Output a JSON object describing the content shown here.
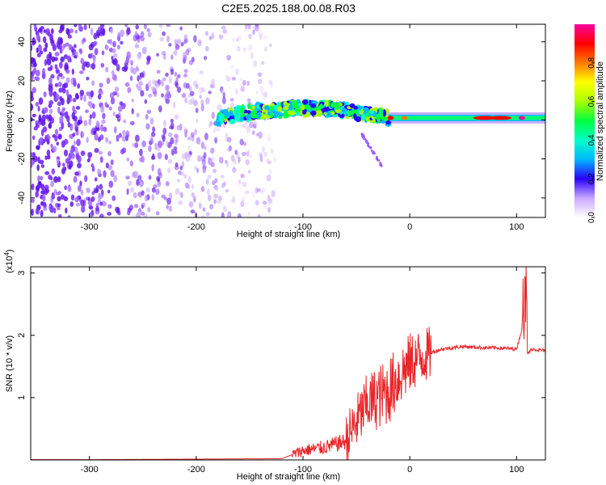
{
  "title": "C2E5.2025.188.00.08.R03",
  "chart_data": [
    {
      "type": "heatmap",
      "xlabel": "Height of straight line (km)",
      "ylabel": "Frequency (Hz)",
      "xlim": [
        -355,
        127
      ],
      "ylim": [
        -50,
        49
      ],
      "xticks": [
        -300,
        -200,
        -100,
        0,
        100
      ],
      "yticks": [
        -40,
        -20,
        0,
        20,
        40
      ],
      "colorbar": {
        "label": "Normalized spectral amplitude",
        "range": [
          0,
          1
        ],
        "ticks": [
          0.0,
          0.2,
          0.4,
          0.6,
          0.8
        ]
      },
      "regions": {
        "noise_x_range": [
          -355,
          -125
        ],
        "signal_x_range": [
          -180,
          127
        ],
        "signal_center_freq_hz": 1
      },
      "grid": false
    },
    {
      "type": "line",
      "xlabel": "Height of straight line (km)",
      "ylabel": "SNR (10 * v/v)",
      "multiplier_label": "(x10",
      "multiplier_exp": "4",
      "multiplier_close": ")",
      "xlim": [
        -355,
        127
      ],
      "ylim": [
        0,
        3.1
      ],
      "xticks": [
        -300,
        -200,
        -100,
        0,
        100
      ],
      "yticks": [
        1,
        2,
        3
      ],
      "color": "#e8262a",
      "grid": false,
      "series": [
        {
          "x": [
            -355,
            -120,
            -100,
            -80,
            -60,
            -50,
            -40,
            -30,
            -20,
            -10,
            0,
            10,
            20,
            30,
            40,
            50,
            60,
            70,
            80,
            90,
            100,
            105,
            108,
            110,
            115,
            127
          ],
          "y": [
            0.0,
            0.02,
            0.15,
            0.2,
            0.3,
            0.6,
            0.9,
            1.0,
            1.1,
            1.35,
            1.55,
            1.65,
            1.72,
            1.78,
            1.8,
            1.82,
            1.81,
            1.8,
            1.8,
            1.79,
            1.78,
            2.1,
            3.1,
            1.7,
            1.78,
            1.75
          ]
        }
      ]
    }
  ]
}
